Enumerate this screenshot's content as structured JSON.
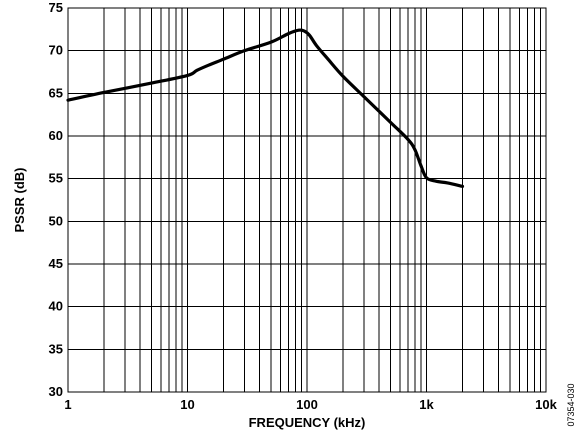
{
  "chart_data": {
    "type": "line",
    "xlabel": "FREQUENCY (kHz)",
    "ylabel": "PSSR (dB)",
    "x_scale": "log",
    "xlim": [
      1,
      10000
    ],
    "ylim": [
      30,
      75
    ],
    "grid": true,
    "x_tick_values": [
      1,
      10,
      100,
      1000,
      10000
    ],
    "x_tick_labels": [
      "1",
      "10",
      "100",
      "1k",
      "10k"
    ],
    "y_tick_values": [
      30,
      35,
      40,
      45,
      50,
      55,
      60,
      65,
      70,
      75
    ],
    "y_tick_labels": [
      "30",
      "35",
      "40",
      "45",
      "50",
      "55",
      "60",
      "65",
      "70",
      "75"
    ],
    "series": [
      {
        "x": [
          1,
          2,
          5,
          10,
          12,
          15,
          20,
          30,
          50,
          70,
          85,
          95,
          105,
          120,
          150,
          200,
          300,
          500,
          700,
          800,
          900,
          1000,
          1200,
          1500,
          2000
        ],
        "y": [
          64.2,
          65.1,
          66.2,
          67.1,
          67.7,
          68.3,
          69.0,
          70.0,
          71.0,
          72.0,
          72.4,
          72.3,
          71.8,
          70.6,
          69.0,
          67.0,
          64.6,
          61.6,
          59.6,
          58.4,
          56.5,
          55.1,
          54.7,
          54.5,
          54.1
        ]
      }
    ]
  },
  "figure_code": "07354-030"
}
